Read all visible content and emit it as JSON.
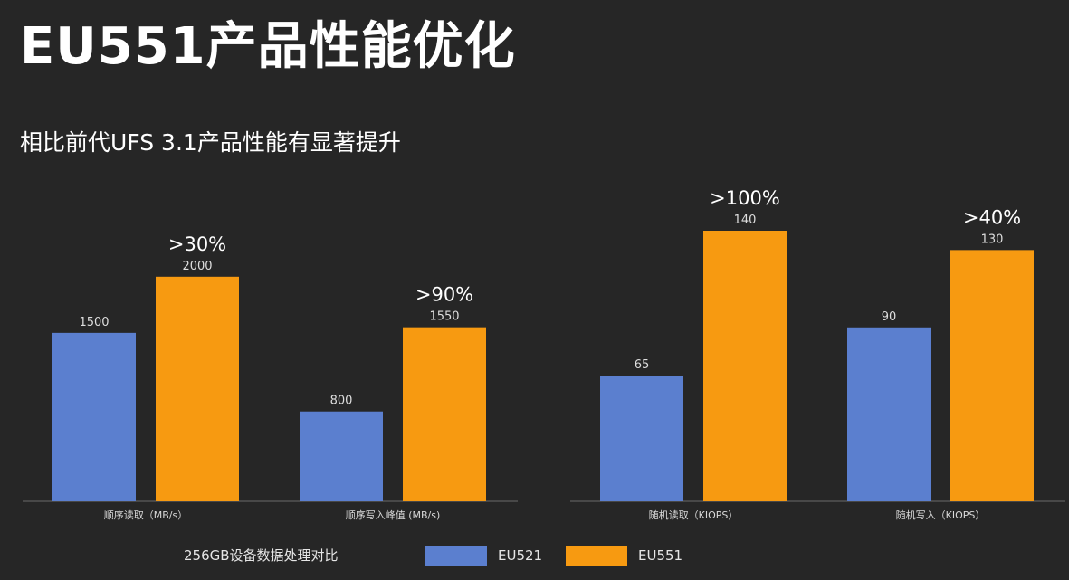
{
  "title": "EU551产品性能优化",
  "subtitle": "相比前代UFS 3.1产品性能有显著提升",
  "footer_note": "256GB设备数据处理对比",
  "colors": {
    "EU521": "#5b7fcf",
    "EU551": "#f79a11",
    "background": "#262626",
    "axis": "#6b6b6b"
  },
  "legend": [
    {
      "name": "EU521",
      "color": "#5b7fcf"
    },
    {
      "name": "EU551",
      "color": "#f79a11"
    }
  ],
  "chart_data": [
    {
      "type": "bar",
      "categories": [
        "顺序读取（MB/s）",
        "顺序写入峰值 (MB/s)"
      ],
      "series": [
        {
          "name": "EU521",
          "values": [
            1500,
            800
          ]
        },
        {
          "name": "EU551",
          "values": [
            2000,
            1550
          ]
        }
      ],
      "annotations": [
        ">30%",
        ">90%"
      ],
      "ylim": [
        0,
        2200
      ]
    },
    {
      "type": "bar",
      "categories": [
        "随机读取（KIOPS）",
        "随机写入（KIOPS）"
      ],
      "series": [
        {
          "name": "EU521",
          "values": [
            65,
            90
          ]
        },
        {
          "name": "EU551",
          "values": [
            140,
            130
          ]
        }
      ],
      "annotations": [
        ">100%",
        ">40%"
      ],
      "ylim": [
        0,
        140
      ]
    }
  ]
}
